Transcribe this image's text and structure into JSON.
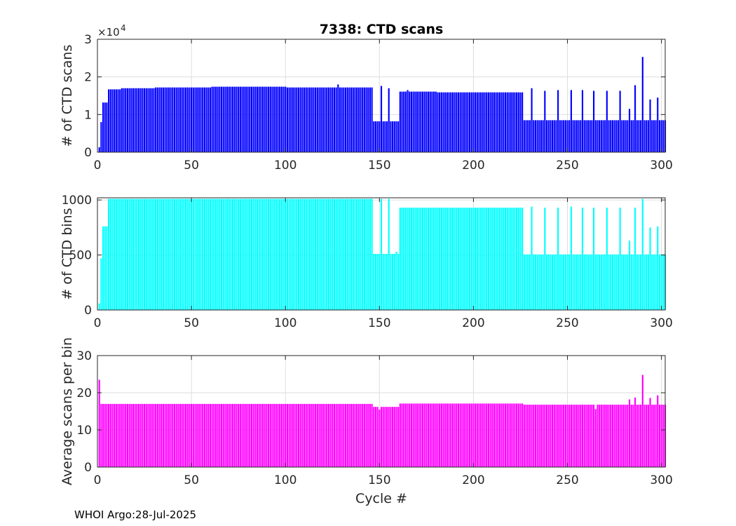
{
  "figure": {
    "title": "7338: CTD scans",
    "xlabel": "Cycle #",
    "footer": "WHOI Argo:28-Jul-2025"
  },
  "chart_data": [
    {
      "type": "bar",
      "ylabel": "# of CTD scans",
      "color": "#0000ff",
      "exponent_label": "×10",
      "exponent_power": "4",
      "xlim": [
        0,
        302
      ],
      "ylim": [
        0,
        30000
      ],
      "xticks": [
        0,
        50,
        100,
        150,
        200,
        250,
        300
      ],
      "yticks": [
        0,
        10000,
        20000,
        30000
      ],
      "ytick_labels": [
        "0",
        "1",
        "2",
        "3"
      ],
      "grid": true,
      "segments": [
        {
          "from": 1,
          "to": 1,
          "value": 1300
        },
        {
          "from": 2,
          "to": 2,
          "value": 8000
        },
        {
          "from": 3,
          "to": 5,
          "value": 13200
        },
        {
          "from": 6,
          "to": 12,
          "value": 16700
        },
        {
          "from": 13,
          "to": 30,
          "value": 17000
        },
        {
          "from": 31,
          "to": 60,
          "value": 17200
        },
        {
          "from": 61,
          "to": 100,
          "value": 17400
        },
        {
          "from": 101,
          "to": 146,
          "value": 17200
        },
        {
          "from": 147,
          "to": 160,
          "value": 8200
        },
        {
          "from": 161,
          "to": 180,
          "value": 16100
        },
        {
          "from": 181,
          "to": 226,
          "value": 15900
        },
        {
          "from": 227,
          "to": 302,
          "value": 8500
        }
      ],
      "overrides": [
        {
          "x": 128,
          "value": 18000
        },
        {
          "x": 151,
          "value": 17600
        },
        {
          "x": 155,
          "value": 17000
        },
        {
          "x": 165,
          "value": 16500
        },
        {
          "x": 231,
          "value": 17000
        },
        {
          "x": 238,
          "value": 16300
        },
        {
          "x": 245,
          "value": 16500
        },
        {
          "x": 252,
          "value": 16500
        },
        {
          "x": 258,
          "value": 16500
        },
        {
          "x": 264,
          "value": 16300
        },
        {
          "x": 271,
          "value": 16300
        },
        {
          "x": 278,
          "value": 16300
        },
        {
          "x": 283,
          "value": 11500
        },
        {
          "x": 286,
          "value": 17800
        },
        {
          "x": 290,
          "value": 25300
        },
        {
          "x": 294,
          "value": 14000
        },
        {
          "x": 298,
          "value": 14500
        }
      ]
    },
    {
      "type": "bar",
      "ylabel": "# of CTD bins",
      "color": "#00ffff",
      "xlim": [
        0,
        302
      ],
      "ylim": [
        0,
        1020
      ],
      "xticks": [
        0,
        50,
        100,
        150,
        200,
        250,
        300
      ],
      "yticks": [
        0,
        500,
        1000
      ],
      "ytick_labels": [
        "0",
        "500",
        "1000"
      ],
      "grid": true,
      "segments": [
        {
          "from": 1,
          "to": 1,
          "value": 60
        },
        {
          "from": 2,
          "to": 2,
          "value": 470
        },
        {
          "from": 3,
          "to": 5,
          "value": 760
        },
        {
          "from": 6,
          "to": 146,
          "value": 1010
        },
        {
          "from": 147,
          "to": 160,
          "value": 510
        },
        {
          "from": 161,
          "to": 226,
          "value": 930
        },
        {
          "from": 227,
          "to": 302,
          "value": 505
        }
      ],
      "overrides": [
        {
          "x": 151,
          "value": 1010
        },
        {
          "x": 155,
          "value": 1010
        },
        {
          "x": 159,
          "value": 530
        },
        {
          "x": 231,
          "value": 940
        },
        {
          "x": 238,
          "value": 930
        },
        {
          "x": 245,
          "value": 930
        },
        {
          "x": 252,
          "value": 940
        },
        {
          "x": 258,
          "value": 930
        },
        {
          "x": 264,
          "value": 930
        },
        {
          "x": 271,
          "value": 930
        },
        {
          "x": 278,
          "value": 930
        },
        {
          "x": 283,
          "value": 630
        },
        {
          "x": 286,
          "value": 930
        },
        {
          "x": 290,
          "value": 1010
        },
        {
          "x": 294,
          "value": 750
        },
        {
          "x": 298,
          "value": 760
        }
      ]
    },
    {
      "type": "bar",
      "ylabel": "Average scans per bin",
      "color": "#ff00ff",
      "xlim": [
        0,
        302
      ],
      "ylim": [
        0,
        30
      ],
      "xticks": [
        0,
        50,
        100,
        150,
        200,
        250,
        300
      ],
      "yticks": [
        0,
        10,
        20,
        30
      ],
      "ytick_labels": [
        "0",
        "10",
        "20",
        "30"
      ],
      "grid": true,
      "segments": [
        {
          "from": 1,
          "to": 1,
          "value": 23.5
        },
        {
          "from": 2,
          "to": 146,
          "value": 17.0
        },
        {
          "from": 147,
          "to": 160,
          "value": 16.2
        },
        {
          "from": 161,
          "to": 226,
          "value": 17.1
        },
        {
          "from": 227,
          "to": 302,
          "value": 16.8
        }
      ],
      "overrides": [
        {
          "x": 290,
          "value": 24.8
        },
        {
          "x": 286,
          "value": 18.7
        },
        {
          "x": 298,
          "value": 19.3
        },
        {
          "x": 265,
          "value": 15.6
        },
        {
          "x": 283,
          "value": 18.2
        },
        {
          "x": 294,
          "value": 18.6
        },
        {
          "x": 150,
          "value": 15.5
        }
      ]
    }
  ]
}
